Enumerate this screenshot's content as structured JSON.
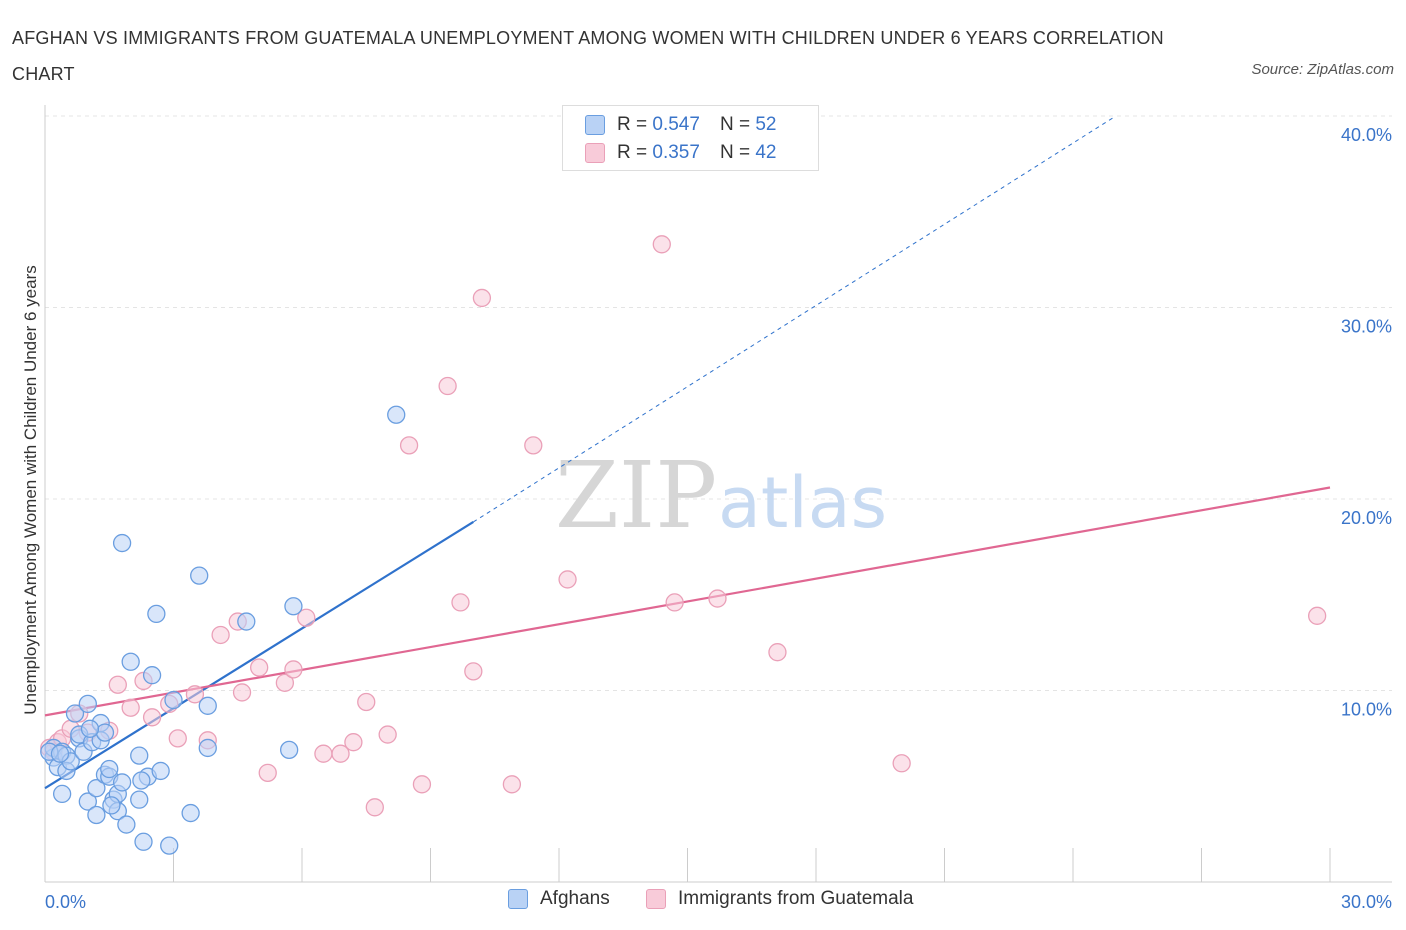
{
  "title": "AFGHAN VS IMMIGRANTS FROM GUATEMALA UNEMPLOYMENT AMONG WOMEN WITH CHILDREN UNDER 6 YEARS CORRELATION CHART",
  "source": "Source: ZipAtlas.com",
  "watermark": {
    "zip": "ZIP",
    "atlas": "atlas"
  },
  "colors": {
    "blue": "#6a9ee0",
    "blue_fill": "#b9d2f5",
    "blue_line": "#2f72cc",
    "pink": "#eaa0b8",
    "pink_fill": "#f8cbd9",
    "pink_line": "#e06792",
    "axis_text": "#3a74c9",
    "grid": "#e4e4e4"
  },
  "stats": [
    {
      "r_label": "R = ",
      "r_value": "0.547",
      "n_label": "N = ",
      "n_value": "52"
    },
    {
      "r_label": "R = ",
      "r_value": "0.357",
      "n_label": "N = ",
      "n_value": "42"
    }
  ],
  "chart_data": {
    "type": "scatter",
    "title": "AFGHAN VS IMMIGRANTS FROM GUATEMALA UNEMPLOYMENT AMONG WOMEN WITH CHILDREN UNDER 6 YEARS CORRELATION CHART",
    "xlabel": "",
    "ylabel": "Unemployment Among Women with Children Under 6 years",
    "xlim": [
      0,
      30
    ],
    "ylim": [
      0,
      40
    ],
    "x_tick_labels": [
      "0.0%",
      "30.0%"
    ],
    "y_ticks": [
      10,
      20,
      30,
      40
    ],
    "y_tick_labels": [
      "10.0%",
      "20.0%",
      "30.0%",
      "40.0%"
    ],
    "grid": true,
    "legend_position": "bottom-center",
    "series": [
      {
        "name": "Afghans",
        "color": "#6a9ee0",
        "points": [
          [
            0.2,
            6.5
          ],
          [
            0.2,
            7.0
          ],
          [
            0.3,
            6.0
          ],
          [
            0.4,
            6.8
          ],
          [
            0.5,
            6.6
          ],
          [
            0.4,
            4.6
          ],
          [
            0.5,
            5.8
          ],
          [
            0.6,
            6.3
          ],
          [
            0.7,
            8.8
          ],
          [
            0.8,
            7.5
          ],
          [
            0.8,
            7.7
          ],
          [
            0.9,
            6.8
          ],
          [
            1.0,
            9.3
          ],
          [
            1.0,
            4.2
          ],
          [
            1.1,
            7.3
          ],
          [
            1.2,
            3.5
          ],
          [
            1.2,
            4.9
          ],
          [
            1.3,
            8.3
          ],
          [
            1.3,
            7.4
          ],
          [
            1.4,
            7.8
          ],
          [
            1.4,
            5.6
          ],
          [
            1.5,
            5.5
          ],
          [
            1.5,
            5.9
          ],
          [
            1.6,
            4.3
          ],
          [
            1.7,
            4.6
          ],
          [
            1.8,
            17.7
          ],
          [
            1.7,
            3.7
          ],
          [
            1.8,
            5.2
          ],
          [
            1.9,
            3.0
          ],
          [
            2.0,
            11.5
          ],
          [
            2.2,
            4.3
          ],
          [
            2.2,
            6.6
          ],
          [
            2.3,
            2.1
          ],
          [
            2.4,
            5.5
          ],
          [
            2.5,
            10.8
          ],
          [
            2.6,
            14.0
          ],
          [
            2.7,
            5.8
          ],
          [
            2.9,
            1.9
          ],
          [
            3.0,
            9.5
          ],
          [
            3.4,
            3.6
          ],
          [
            3.6,
            16.0
          ],
          [
            3.8,
            7.0
          ],
          [
            3.8,
            9.2
          ],
          [
            4.7,
            13.6
          ],
          [
            5.7,
            6.9
          ],
          [
            5.8,
            14.4
          ],
          [
            8.2,
            24.4
          ],
          [
            0.1,
            6.8
          ],
          [
            0.35,
            6.7
          ],
          [
            1.05,
            8.0
          ],
          [
            2.25,
            5.3
          ],
          [
            1.55,
            4.0
          ]
        ],
        "trend": {
          "x0": 0,
          "y0": 4.9,
          "x1": 10,
          "y1": 18.8,
          "dashed_to_x": 25,
          "dashed_to_y": 40
        }
      },
      {
        "name": "Immigrants from Guatemala",
        "color": "#eaa0b8",
        "points": [
          [
            0.1,
            7.0
          ],
          [
            0.2,
            6.8
          ],
          [
            0.3,
            7.3
          ],
          [
            0.4,
            7.5
          ],
          [
            0.6,
            8.0
          ],
          [
            0.8,
            8.8
          ],
          [
            1.0,
            7.8
          ],
          [
            1.5,
            7.9
          ],
          [
            1.7,
            10.3
          ],
          [
            2.0,
            9.1
          ],
          [
            2.3,
            10.5
          ],
          [
            2.5,
            8.6
          ],
          [
            2.9,
            9.3
          ],
          [
            3.1,
            7.5
          ],
          [
            3.5,
            9.8
          ],
          [
            3.8,
            7.4
          ],
          [
            4.1,
            12.9
          ],
          [
            4.5,
            13.6
          ],
          [
            4.6,
            9.9
          ],
          [
            5.0,
            11.2
          ],
          [
            5.2,
            5.7
          ],
          [
            5.6,
            10.4
          ],
          [
            5.8,
            11.1
          ],
          [
            6.1,
            13.8
          ],
          [
            6.5,
            6.7
          ],
          [
            6.9,
            6.7
          ],
          [
            7.2,
            7.3
          ],
          [
            7.5,
            9.4
          ],
          [
            7.7,
            3.9
          ],
          [
            8.0,
            7.7
          ],
          [
            8.5,
            22.8
          ],
          [
            8.8,
            5.1
          ],
          [
            9.4,
            25.9
          ],
          [
            9.7,
            14.6
          ],
          [
            10.0,
            11.0
          ],
          [
            10.2,
            30.5
          ],
          [
            10.9,
            5.1
          ],
          [
            11.4,
            22.8
          ],
          [
            12.2,
            15.8
          ],
          [
            14.4,
            33.3
          ],
          [
            15.7,
            14.8
          ],
          [
            20.0,
            6.2
          ]
        ],
        "extra_points": [
          [
            14.7,
            14.6
          ],
          [
            17.1,
            12.0
          ],
          [
            29.7,
            13.9
          ]
        ],
        "trend": {
          "x0": 0,
          "y0": 8.7,
          "x1": 30,
          "y1": 20.6
        }
      }
    ]
  }
}
